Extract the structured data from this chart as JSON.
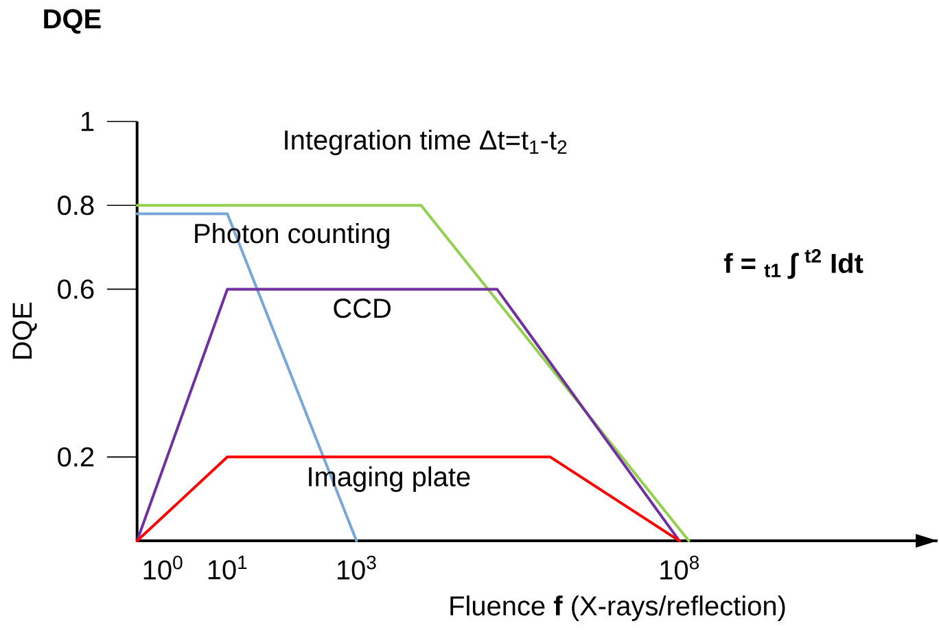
{
  "chart_data": {
    "type": "line",
    "title": "DQE",
    "xlabel": "Fluence **f** (X-rays/reflection)",
    "ylabel": "DQE",
    "annotations": [
      "Integration time Δt=t$_{1}$-t$_{2}$",
      "f = $_{t1}$ ∫ $^{t2}$ Idt"
    ],
    "log": "x",
    "xlim": [
      0.4,
      1000000000000.0
    ],
    "ylim": [
      0,
      1
    ],
    "xticks": [
      {
        "value": 1,
        "label": "10$^{0}$"
      },
      {
        "value": 10,
        "label": "10$^{1}$"
      },
      {
        "value": 1000,
        "label": "10$^{3}$"
      },
      {
        "value": 100000000,
        "label": "10$^{8}$"
      }
    ],
    "yticks": [
      1,
      0.8,
      0.6,
      0.2
    ],
    "grid": false,
    "legend": false,
    "marker": "none",
    "line_style": "solid",
    "series": [
      {
        "color": "#92d050",
        "x": [
          0.4,
          10000,
          140000000
        ],
        "values": [
          0.8,
          0.8,
          0
        ]
      },
      {
        "name": "Photon counting",
        "color": "#78a6d8",
        "x": [
          0.4,
          10,
          1000
        ],
        "values": [
          0.78,
          0.78,
          0
        ]
      },
      {
        "name": "CCD",
        "color": "#7030a0",
        "x": [
          0.4,
          10,
          150000,
          100000000
        ],
        "values": [
          0,
          0.6,
          0.6,
          0
        ]
      },
      {
        "name": "Imaging plate",
        "color": "#ff0000",
        "x": [
          0.4,
          10,
          1000000,
          100000000
        ],
        "values": [
          0,
          0.2,
          0.2,
          0
        ]
      }
    ]
  }
}
